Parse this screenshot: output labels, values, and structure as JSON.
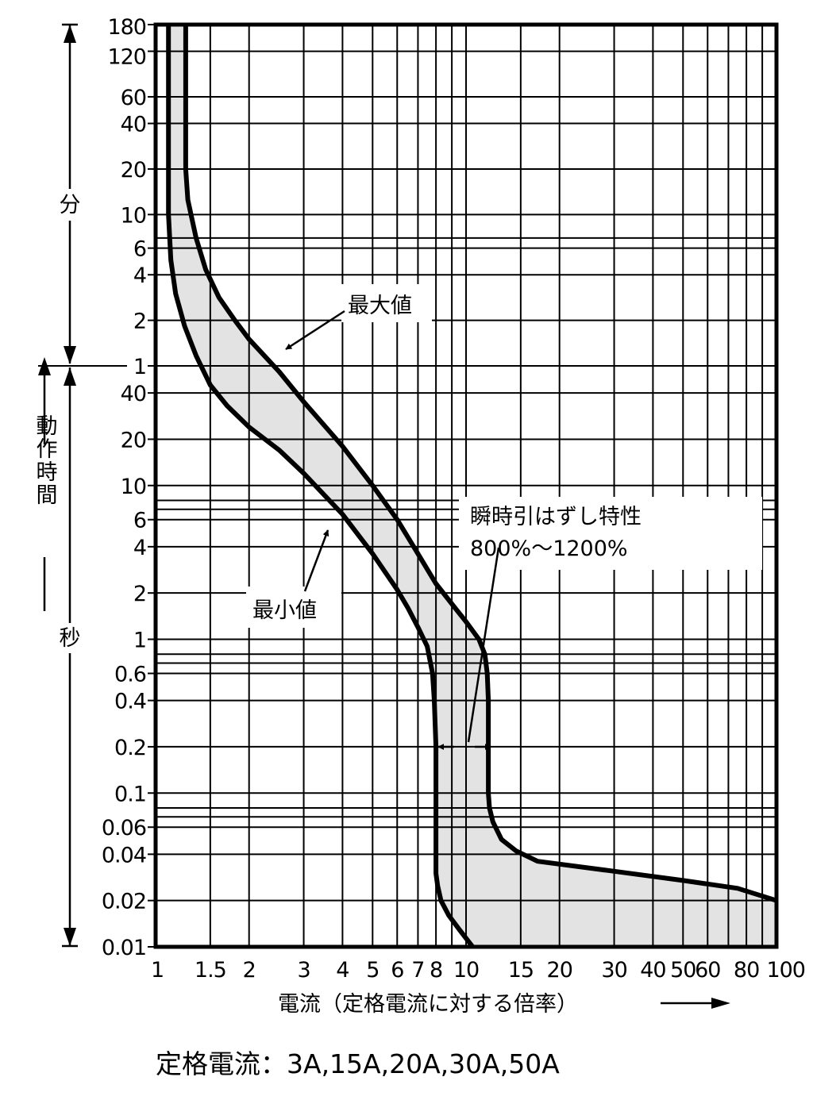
{
  "chart_data": {
    "type": "line",
    "title": "",
    "xlabel": "電流（定格電流に対する倍率）",
    "x_scale": "log",
    "xlim": [
      1,
      100
    ],
    "x_ticks": [
      {
        "v": 1,
        "label": "1"
      },
      {
        "v": 1.5,
        "label": "1.5"
      },
      {
        "v": 2,
        "label": "2"
      },
      {
        "v": 3,
        "label": "3"
      },
      {
        "v": 4,
        "label": "4"
      },
      {
        "v": 5,
        "label": "5"
      },
      {
        "v": 6,
        "label": "6"
      },
      {
        "v": 7,
        "label": "7"
      },
      {
        "v": 8,
        "label": "8"
      },
      {
        "v": 10,
        "label": "10"
      },
      {
        "v": 15,
        "label": "15"
      },
      {
        "v": 20,
        "label": "20"
      },
      {
        "v": 30,
        "label": "30"
      },
      {
        "v": 40,
        "label": "40"
      },
      {
        "v": 50,
        "label": "50"
      },
      {
        "v": 60,
        "label": "60"
      },
      {
        "v": 80,
        "label": "80"
      },
      {
        "v": 100,
        "label": "100"
      }
    ],
    "ylabel": "動作時間",
    "y_scale": "log",
    "ylim_seconds": [
      0.01,
      10800
    ],
    "y_unit_labels": {
      "minutes": "分",
      "seconds": "秒"
    },
    "y_ticks": [
      {
        "seconds": 10800,
        "label": "180"
      },
      {
        "seconds": 7200,
        "label": "120"
      },
      {
        "seconds": 3600,
        "label": "60"
      },
      {
        "seconds": 2400,
        "label": "40"
      },
      {
        "seconds": 1200,
        "label": "20"
      },
      {
        "seconds": 600,
        "label": "10"
      },
      {
        "seconds": 360,
        "label": "6"
      },
      {
        "seconds": 240,
        "label": "4"
      },
      {
        "seconds": 120,
        "label": "2"
      },
      {
        "seconds": 60,
        "label": "1"
      },
      {
        "seconds": 40,
        "label": "40"
      },
      {
        "seconds": 20,
        "label": "20"
      },
      {
        "seconds": 10,
        "label": "10"
      },
      {
        "seconds": 6,
        "label": "6"
      },
      {
        "seconds": 4,
        "label": "4"
      },
      {
        "seconds": 2,
        "label": "2"
      },
      {
        "seconds": 1,
        "label": "1"
      },
      {
        "seconds": 0.6,
        "label": "0.6"
      },
      {
        "seconds": 0.4,
        "label": "0.4"
      },
      {
        "seconds": 0.2,
        "label": "0.2"
      },
      {
        "seconds": 0.1,
        "label": "0.1"
      },
      {
        "seconds": 0.06,
        "label": "0.06"
      },
      {
        "seconds": 0.04,
        "label": "0.04"
      },
      {
        "seconds": 0.02,
        "label": "0.02"
      },
      {
        "seconds": 0.01,
        "label": "0.01"
      }
    ],
    "y_gridlines_seconds": [
      10800,
      7200,
      3600,
      2400,
      1200,
      600,
      420,
      360,
      240,
      120,
      60,
      40,
      20,
      10,
      8,
      7,
      6,
      4,
      2,
      1,
      0.8,
      0.7,
      0.6,
      0.4,
      0.2,
      0.1,
      0.08,
      0.07,
      0.06,
      0.04,
      0.02,
      0.01
    ],
    "grid": true,
    "band_fill": "#e3e3e3",
    "series": [
      {
        "name": "最大値",
        "x": [
          1.25,
          1.25,
          1.27,
          1.35,
          1.45,
          1.6,
          1.8,
          2.0,
          2.5,
          3.0,
          4.0,
          5.0,
          6.0,
          7.0,
          8.0,
          9.0,
          10.0,
          11.0,
          11.5,
          11.7,
          11.8,
          11.8,
          11.8,
          11.9,
          12.2,
          13.0,
          14.5,
          17.0,
          30.0,
          50.0,
          75.0,
          100.0
        ],
        "y": [
          10800,
          1200,
          750,
          420,
          260,
          170,
          120,
          90,
          55,
          35,
          18,
          10,
          6,
          3.6,
          2.3,
          1.7,
          1.3,
          1.0,
          0.8,
          0.6,
          0.4,
          0.2,
          0.1,
          0.08,
          0.065,
          0.05,
          0.042,
          0.036,
          0.031,
          0.027,
          0.024,
          0.02
        ]
      },
      {
        "name": "最小値",
        "x": [
          1.1,
          1.1,
          1.1,
          1.12,
          1.16,
          1.24,
          1.35,
          1.5,
          1.7,
          2.0,
          2.5,
          3.0,
          4.0,
          5.0,
          6.0,
          6.5,
          7.0,
          7.5,
          7.8,
          7.9,
          8.0,
          8.0,
          8.0,
          8.0,
          8.0,
          8.1,
          8.3,
          8.8,
          9.5,
          10.5
        ],
        "y": [
          10800,
          2400,
          600,
          300,
          180,
          110,
          70,
          45,
          33,
          24,
          17,
          12,
          6.5,
          3.6,
          2.1,
          1.6,
          1.2,
          0.9,
          0.6,
          0.4,
          0.2,
          0.1,
          0.06,
          0.04,
          0.03,
          0.025,
          0.02,
          0.016,
          0.013,
          0.01
        ]
      }
    ],
    "annotations": {
      "max_label": "最大値",
      "min_label": "最小値",
      "instant_trip_line1": "瞬時引はずし特性",
      "instant_trip_line2": "800%～1200%"
    },
    "footer": "定格電流：3A,15A,20A,30A,50A"
  }
}
